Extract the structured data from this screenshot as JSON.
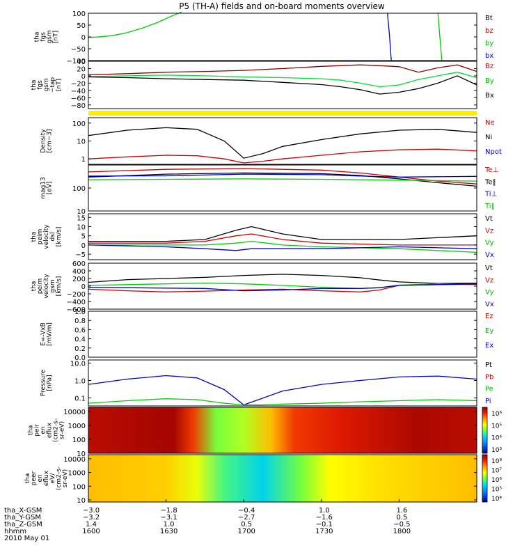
{
  "title": "P5 (TH-A) fields and on-board moments overview",
  "chart_data": [
    {
      "id": "fgs",
      "type": "line",
      "ylabel": [
        "tha",
        "fgs",
        "gsm",
        "[nT]"
      ],
      "ylim": [
        -100,
        100
      ],
      "yticks": [
        "100",
        "50",
        "0",
        "−50",
        "−100"
      ],
      "yvals": [
        100,
        50,
        0,
        -50,
        -100
      ],
      "legend": [
        {
          "text": "Bt",
          "color": "#000000"
        },
        {
          "text": "bz",
          "color": "#cc0000"
        },
        {
          "text": "by",
          "color": "#00bb00"
        },
        {
          "text": "bx",
          "color": "#0000cc"
        }
      ],
      "series": [
        {
          "color": "#00cc00",
          "x": [
            0,
            0.02,
            0.06,
            0.1,
            0.14,
            0.18,
            0.21,
            0.24
          ],
          "y": [
            -2,
            -1,
            5,
            18,
            38,
            62,
            85,
            105
          ]
        },
        {
          "color": "#0000dd",
          "x": [
            0.77,
            0.775,
            0.78
          ],
          "y": [
            100,
            10,
            -100
          ]
        },
        {
          "color": "#00cc00",
          "x": [
            0.9,
            0.905,
            0.91
          ],
          "y": [
            100,
            0,
            -100
          ]
        }
      ]
    },
    {
      "id": "fgs-zoom",
      "type": "line",
      "ylabel": [
        "tha",
        "fgs",
        "gsm",
        "−tap",
        "[nT]"
      ],
      "ylim": [
        -90,
        40
      ],
      "yticks": [
        "40",
        "20",
        "0",
        "−20",
        "−40",
        "−60",
        "−80"
      ],
      "yvals": [
        40,
        20,
        0,
        -20,
        -40,
        -60,
        -80
      ],
      "legend": [
        {
          "text": "Bz",
          "color": "#cc0000"
        },
        {
          "text": "By",
          "color": "#00bb00"
        },
        {
          "text": "Bx",
          "color": "#000000"
        }
      ],
      "series": [
        {
          "color": "#8b0000",
          "x": [
            0,
            0.1,
            0.2,
            0.3,
            0.4,
            0.5,
            0.6,
            0.65,
            0.7,
            0.75,
            0.8,
            0.85,
            0.9,
            0.95,
            1
          ],
          "y": [
            3,
            6,
            10,
            12,
            15,
            20,
            26,
            28,
            30,
            28,
            25,
            10,
            22,
            30,
            12
          ]
        },
        {
          "color": "#00dd33",
          "x": [
            0,
            0.1,
            0.2,
            0.3,
            0.4,
            0.5,
            0.6,
            0.65,
            0.7,
            0.75,
            0.8,
            0.85,
            0.9,
            0.95,
            1
          ],
          "y": [
            -2,
            0,
            2,
            0,
            -3,
            -5,
            -8,
            -12,
            -20,
            -30,
            -25,
            -10,
            0,
            10,
            -5
          ]
        },
        {
          "color": "#000000",
          "x": [
            0,
            0.1,
            0.2,
            0.3,
            0.4,
            0.5,
            0.6,
            0.65,
            0.7,
            0.75,
            0.8,
            0.85,
            0.9,
            0.95,
            1
          ],
          "y": [
            -3,
            -5,
            -8,
            -10,
            -12,
            -18,
            -24,
            -30,
            -38,
            -50,
            -45,
            -35,
            -20,
            0,
            -25
          ]
        }
      ]
    },
    {
      "id": "density",
      "type": "line",
      "ylog": true,
      "ylabel": [
        "Density",
        "[cm−3]"
      ],
      "ylim": [
        0.5,
        200
      ],
      "yticks": [
        "100",
        "10",
        "1"
      ],
      "yvals": [
        100,
        10,
        1
      ],
      "legend": [
        {
          "text": "Ne",
          "color": "#cc0000"
        },
        {
          "text": "Ni",
          "color": "#000000"
        },
        {
          "text": "Npot",
          "color": "#0000cc"
        }
      ],
      "series": [
        {
          "color": "#000000",
          "x": [
            0,
            0.1,
            0.2,
            0.28,
            0.35,
            0.4,
            0.45,
            0.5,
            0.6,
            0.7,
            0.8,
            0.9,
            1
          ],
          "y": [
            20,
            40,
            55,
            45,
            10,
            1.1,
            2,
            5,
            12,
            25,
            40,
            45,
            30
          ]
        },
        {
          "color": "#cc0000",
          "x": [
            0,
            0.1,
            0.2,
            0.28,
            0.35,
            0.4,
            0.45,
            0.5,
            0.6,
            0.7,
            0.8,
            0.9,
            1
          ],
          "y": [
            1,
            1.3,
            1.6,
            1.5,
            1,
            0.6,
            0.75,
            1,
            1.6,
            2.5,
            3.2,
            3.5,
            2.8
          ]
        }
      ]
    },
    {
      "id": "temperature",
      "type": "line",
      "ylog": true,
      "ylabel": [
        "mag13",
        "[eV]"
      ],
      "ylim": [
        10,
        1000
      ],
      "yticks": [
        "100",
        "10"
      ],
      "yvals": [
        100,
        10
      ],
      "legend": [
        {
          "text": "Te⊥",
          "color": "#cc0000"
        },
        {
          "text": "Te‖",
          "color": "#000000"
        },
        {
          "text": "Ti⊥",
          "color": "#0000cc"
        },
        {
          "text": "Ti‖",
          "color": "#00bb00"
        }
      ],
      "series": [
        {
          "color": "#cc0000",
          "x": [
            0,
            0.2,
            0.4,
            0.6,
            0.7,
            0.8,
            0.9,
            1
          ],
          "y": [
            500,
            650,
            700,
            600,
            450,
            300,
            200,
            150
          ]
        },
        {
          "color": "#000000",
          "x": [
            0,
            0.2,
            0.4,
            0.6,
            0.7,
            0.8,
            0.9,
            1
          ],
          "y": [
            300,
            400,
            450,
            420,
            350,
            250,
            170,
            120
          ]
        },
        {
          "color": "#0000cc",
          "x": [
            0,
            0.2,
            0.4,
            0.6,
            0.7,
            0.8,
            0.9,
            1
          ],
          "y": [
            330,
            340,
            400,
            380,
            330,
            300,
            310,
            320
          ]
        },
        {
          "color": "#00cc00",
          "x": [
            0,
            0.2,
            0.4,
            0.6,
            0.7,
            0.8,
            0.9,
            1
          ],
          "y": [
            230,
            240,
            250,
            240,
            230,
            220,
            210,
            200
          ]
        }
      ]
    },
    {
      "id": "peim-dsl",
      "type": "line",
      "ylabel": [
        "tha",
        "peim",
        "velocity",
        "dsl",
        "[km/s]"
      ],
      "ylim": [
        -8,
        17
      ],
      "yticks": [
        "15",
        "10",
        "5",
        "0",
        "−5"
      ],
      "yvals": [
        15,
        10,
        5,
        0,
        -5
      ],
      "legend": [
        {
          "text": "Vt",
          "color": "#000000"
        },
        {
          "text": "Vz",
          "color": "#cc0000"
        },
        {
          "text": "Vy",
          "color": "#00bb00"
        },
        {
          "text": "Vx",
          "color": "#0000cc"
        }
      ],
      "series": [
        {
          "color": "#000000",
          "x": [
            0,
            0.2,
            0.3,
            0.38,
            0.42,
            0.5,
            0.6,
            0.8,
            1
          ],
          "y": [
            2,
            2,
            3,
            8,
            10,
            6,
            3,
            3,
            5
          ]
        },
        {
          "color": "#cc0000",
          "x": [
            0,
            0.2,
            0.3,
            0.38,
            0.42,
            0.5,
            0.6,
            0.8,
            1
          ],
          "y": [
            1,
            1,
            2,
            5,
            6,
            3,
            1,
            0,
            0
          ]
        },
        {
          "color": "#00cc00",
          "x": [
            0,
            0.2,
            0.3,
            0.38,
            0.42,
            0.5,
            0.6,
            0.8,
            1
          ],
          "y": [
            0,
            0,
            0,
            1,
            2,
            0,
            -1,
            -2,
            -4
          ]
        },
        {
          "color": "#0000cc",
          "x": [
            0,
            0.2,
            0.3,
            0.38,
            0.42,
            0.5,
            0.6,
            0.8,
            1
          ],
          "y": [
            0,
            -1,
            -2,
            -3,
            -2,
            -2,
            -2,
            -1,
            -2
          ]
        }
      ]
    },
    {
      "id": "peim-gsm",
      "type": "line",
      "ylabel": [
        "tha",
        "peim",
        "velocity",
        "gsm",
        "[km/s]"
      ],
      "ylim": [
        -600,
        600
      ],
      "yticks": [
        "600",
        "400",
        "200",
        "0",
        "−200",
        "−400",
        "−600"
      ],
      "yvals": [
        600,
        400,
        200,
        0,
        -200,
        -400,
        -600
      ],
      "legend": [
        {
          "text": "Vt",
          "color": "#000000"
        },
        {
          "text": "Vz",
          "color": "#cc0000"
        },
        {
          "text": "Vy",
          "color": "#00bb00"
        },
        {
          "text": "Vx",
          "color": "#0000cc"
        }
      ],
      "series": [
        {
          "color": "#000000",
          "x": [
            0,
            0.1,
            0.2,
            0.3,
            0.4,
            0.5,
            0.6,
            0.7,
            0.75,
            0.8,
            0.9,
            1
          ],
          "y": [
            100,
            170,
            200,
            230,
            280,
            310,
            280,
            220,
            160,
            110,
            70,
            80
          ]
        },
        {
          "color": "#00cc00",
          "x": [
            0,
            0.1,
            0.2,
            0.3,
            0.4,
            0.5,
            0.6,
            0.7,
            0.75,
            0.8,
            0.9,
            1
          ],
          "y": [
            20,
            40,
            60,
            80,
            60,
            20,
            -30,
            -60,
            -40,
            30,
            60,
            40
          ]
        },
        {
          "color": "#cc0000",
          "x": [
            0,
            0.1,
            0.2,
            0.3,
            0.4,
            0.5,
            0.6,
            0.7,
            0.75,
            0.8,
            0.9,
            1
          ],
          "y": [
            -80,
            -120,
            -150,
            -130,
            -100,
            -80,
            -120,
            -150,
            -100,
            20,
            40,
            50
          ]
        },
        {
          "color": "#0000cc",
          "x": [
            0,
            0.1,
            0.2,
            0.3,
            0.4,
            0.5,
            0.6,
            0.7,
            0.75,
            0.8,
            0.9,
            1
          ],
          "y": [
            -30,
            -40,
            -50,
            -60,
            -120,
            -100,
            -60,
            -60,
            -40,
            20,
            40,
            60
          ]
        }
      ]
    },
    {
      "id": "efield",
      "type": "line",
      "ylabel": [
        "E=-VxB",
        "[mV/m]"
      ],
      "ylim": [
        0,
        1.0
      ],
      "yticks": [
        "1.0",
        "0.8",
        "0.6",
        "0.4",
        "0.2",
        "0.0"
      ],
      "yvals": [
        1.0,
        0.8,
        0.6,
        0.4,
        0.2,
        0.0
      ],
      "legend": [
        {
          "text": "Ez",
          "color": "#cc0000"
        },
        {
          "text": "Ey",
          "color": "#00bb00"
        },
        {
          "text": "Ex",
          "color": "#0000cc"
        }
      ],
      "series": []
    },
    {
      "id": "pressure",
      "type": "line",
      "ylog": true,
      "ylabel": [
        "Pressure",
        "[nPa]"
      ],
      "ylim": [
        0.035,
        15
      ],
      "yticks": [
        "10.0",
        "1.0",
        "0.1"
      ],
      "yvals": [
        10,
        1,
        0.1
      ],
      "legend": [
        {
          "text": "Pt",
          "color": "#000000"
        },
        {
          "text": "Pb",
          "color": "#cc0000"
        },
        {
          "text": "Pe",
          "color": "#00bb00"
        },
        {
          "text": "Pi",
          "color": "#0000cc"
        }
      ],
      "series": [
        {
          "color": "#0000cc",
          "x": [
            0,
            0.1,
            0.2,
            0.28,
            0.35,
            0.4,
            0.45,
            0.5,
            0.6,
            0.7,
            0.8,
            0.9,
            1
          ],
          "y": [
            0.6,
            1.2,
            1.9,
            1.4,
            0.3,
            0.04,
            0.1,
            0.25,
            0.6,
            1.0,
            1.6,
            1.8,
            1.2
          ]
        },
        {
          "color": "#00cc00",
          "x": [
            0,
            0.1,
            0.2,
            0.28,
            0.35,
            0.4,
            0.45,
            0.5,
            0.6,
            0.7,
            0.8,
            0.9,
            1
          ],
          "y": [
            0.05,
            0.07,
            0.09,
            0.08,
            0.05,
            0.04,
            0.04,
            0.045,
            0.05,
            0.06,
            0.07,
            0.08,
            0.07
          ]
        }
      ]
    },
    {
      "id": "peir-spec",
      "type": "heatmap",
      "ylog": true,
      "ylabel": [
        "tha",
        "peir",
        "en",
        "eflux",
        "(cm2-s-",
        "sr-eV)"
      ],
      "ylim": [
        10,
        20000
      ],
      "yticks": [
        "10000",
        "1000",
        "100",
        "10"
      ],
      "yvals": [
        10000,
        1000,
        100,
        10
      ],
      "colorbar": {
        "labels": [
          "10⁶",
          "10⁵",
          "10⁴",
          "10³"
        ]
      },
      "x": [
        0,
        0.22,
        0.27,
        0.33,
        0.4,
        0.47,
        0.53,
        0.65,
        0.85,
        1
      ],
      "levels": [
        0.95,
        0.98,
        0.85,
        0.5,
        0.55,
        0.7,
        0.85,
        0.9,
        0.97,
        0.95
      ]
    },
    {
      "id": "peer-spec",
      "type": "heatmap",
      "ylog": true,
      "ylabel": [
        "tha",
        "peer",
        "en",
        "eflux",
        "eV/",
        "(cm2-s-",
        "sr-eV)"
      ],
      "ylim": [
        7,
        20000
      ],
      "yticks": [
        "10000",
        "1000",
        "100",
        "10"
      ],
      "yvals": [
        10000,
        1000,
        100,
        10
      ],
      "colorbar": {
        "labels": [
          "10⁸",
          "10⁷",
          "10⁶",
          "10⁵",
          "10⁴"
        ]
      },
      "x": [
        0,
        0.2,
        0.28,
        0.35,
        0.45,
        0.55,
        0.62,
        0.75,
        1
      ],
      "levels": [
        0.7,
        0.68,
        0.6,
        0.45,
        0.35,
        0.5,
        0.62,
        0.66,
        0.7
      ]
    }
  ],
  "xaxis": {
    "ticks": [
      {
        "x": 0,
        "vals": [
          "−3.0",
          "−3.2",
          "1.4",
          "1600"
        ]
      },
      {
        "x": 0.2,
        "vals": [
          "−1.8",
          "−3.1",
          "1.0",
          "1630"
        ]
      },
      {
        "x": 0.4,
        "vals": [
          "−0.4",
          "−2.7",
          "0.5",
          "1700"
        ]
      },
      {
        "x": 0.6,
        "vals": [
          "1.0",
          "−1.6",
          "−0.1",
          "1730"
        ]
      },
      {
        "x": 0.8,
        "vals": [
          "1.6",
          "0.5",
          "−0.5",
          "1800"
        ]
      }
    ],
    "rows": [
      "tha_X-GSM",
      "tha_Y-GSM",
      "tha_Z-GSM",
      "hhmm"
    ],
    "date": "2010 May 01"
  }
}
